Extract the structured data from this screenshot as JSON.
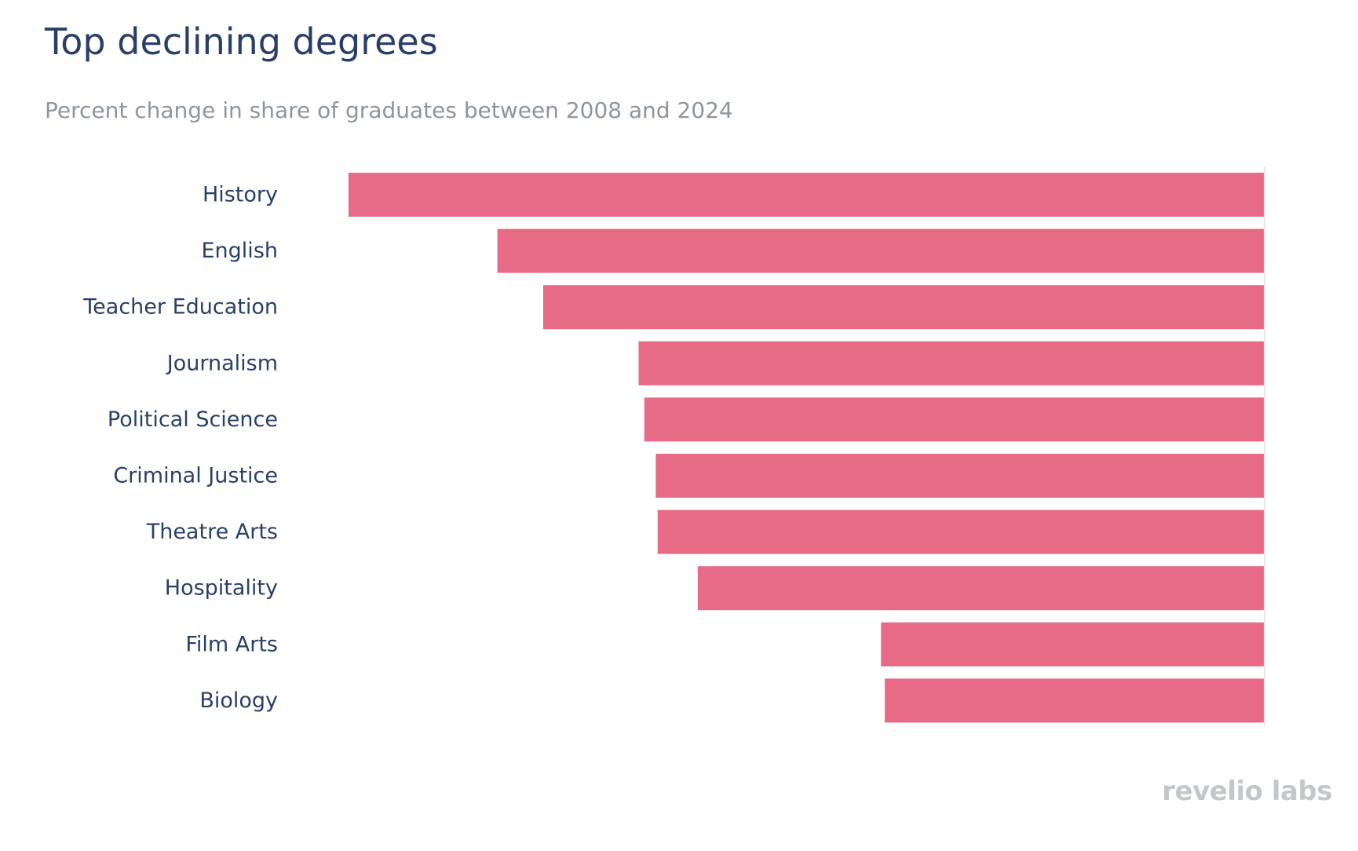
{
  "title": "Top declining degrees",
  "subtitle": "Percent change in share of graduates between 2008 and 2024",
  "logo": {
    "text": "revelio labs"
  },
  "colors": {
    "bar": "#e76a86",
    "zero_line": "#e6e6e6",
    "label": "#2a3f66",
    "subtitle": "#8e969d",
    "logo": "#c4c7ca"
  },
  "chart_data": {
    "type": "bar",
    "orientation": "horizontal",
    "categories": [
      "History",
      "English",
      "Teacher Education",
      "Journalism",
      "Political Science",
      "Criminal Justice",
      "Theatre Arts",
      "Hospitality",
      "Film Arts",
      "Biology"
    ],
    "values": [
      -48.0,
      -40.2,
      -37.8,
      -32.8,
      -32.5,
      -31.9,
      -31.8,
      -29.7,
      -20.1,
      -19.9
    ],
    "xlim": [
      -51,
      0
    ],
    "grid": false,
    "legend": "none",
    "xlabel": "",
    "ylabel": ""
  }
}
